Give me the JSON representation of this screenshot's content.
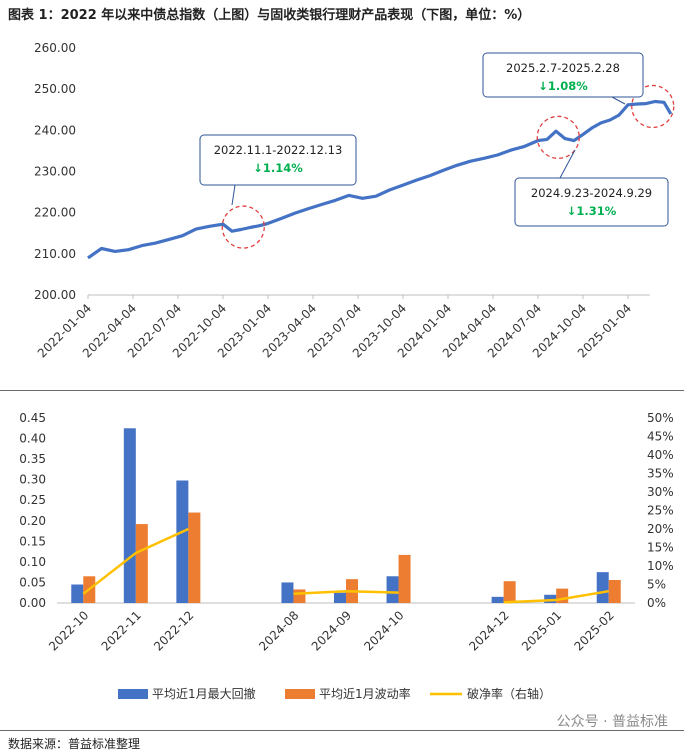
{
  "header": {
    "title": "图表 1：2022 年以来中债总指数（上图）与固收类银行理财产品表现（下图，单位：%）"
  },
  "footer": {
    "source": "数据来源：普益标准整理",
    "watermark": "公众号 · 普益标准"
  },
  "colors": {
    "line": "#4472c4",
    "bar1": "#4472c4",
    "bar2": "#ed7d31",
    "line2": "#ffc000",
    "down": "#00b050",
    "callout": "#2f5597",
    "circle": "#e04040"
  },
  "chart_data": [
    {
      "type": "line",
      "title": "中债总指数",
      "ylim": [
        200,
        260
      ],
      "yticks": [
        "200.00",
        "210.00",
        "220.00",
        "230.00",
        "240.00",
        "250.00",
        "260.00"
      ],
      "xticks": [
        "2022-01-04",
        "2022-04-04",
        "2022-07-04",
        "2022-10-04",
        "2023-01-04",
        "2023-04-04",
        "2023-07-04",
        "2023-10-04",
        "2024-01-04",
        "2024-04-04",
        "2024-07-04",
        "2024-10-04",
        "2025-01-04"
      ],
      "series": [
        {
          "name": "中债总指数",
          "x": [
            0,
            0.3,
            0.6,
            0.9,
            1.2,
            1.5,
            1.8,
            2.1,
            2.4,
            2.7,
            3.0,
            3.2,
            3.4,
            3.6,
            3.8,
            4.0,
            4.3,
            4.6,
            4.9,
            5.2,
            5.5,
            5.8,
            6.1,
            6.4,
            6.7,
            7.0,
            7.3,
            7.6,
            7.9,
            8.2,
            8.5,
            8.8,
            9.1,
            9.4,
            9.7,
            10.0,
            10.2,
            10.4,
            10.6,
            10.8,
            11.0,
            11.2,
            11.4,
            11.6,
            11.8,
            12.0,
            12.2,
            12.4,
            12.6,
            12.8,
            12.95
          ],
          "values": [
            209.0,
            211.3,
            210.6,
            211.0,
            212.0,
            212.6,
            213.5,
            214.4,
            216.0,
            216.7,
            217.2,
            215.5,
            215.9,
            216.4,
            216.8,
            217.4,
            218.6,
            219.9,
            221.0,
            222.0,
            223.0,
            224.2,
            223.5,
            224.0,
            225.5,
            226.7,
            227.9,
            229.0,
            230.3,
            231.5,
            232.5,
            233.2,
            234.0,
            235.2,
            236.1,
            237.5,
            237.8,
            239.8,
            238.0,
            237.5,
            239.0,
            240.6,
            241.8,
            242.5,
            243.7,
            246.2,
            246.4,
            246.5,
            247.0,
            246.8,
            244.0
          ]
        }
      ],
      "annotations": [
        {
          "period": "2022.11.1-2022.12.13",
          "change": "↓1.14%"
        },
        {
          "period": "2024.9.23-2024.9.29",
          "change": "↓1.31%"
        },
        {
          "period": "2025.2.7-2025.2.28",
          "change": "↓1.08%"
        }
      ]
    },
    {
      "type": "bar",
      "categories": [
        "2022-10",
        "2022-11",
        "2022-12",
        "",
        "2024-08",
        "2024-09",
        "2024-10",
        "",
        "2024-12",
        "2025-01",
        "2025-02"
      ],
      "ylim_left": [
        0,
        0.45
      ],
      "ylim_right": [
        0,
        50
      ],
      "yticks_left": [
        "0.00",
        "0.05",
        "0.10",
        "0.15",
        "0.20",
        "0.25",
        "0.30",
        "0.35",
        "0.40",
        "0.45"
      ],
      "yticks_right": [
        "0%",
        "5%",
        "10%",
        "15%",
        "20%",
        "25%",
        "30%",
        "35%",
        "40%",
        "45%",
        "50%"
      ],
      "series": [
        {
          "name": "平均近1月最大回撤",
          "axis": "left",
          "values": [
            0.045,
            0.425,
            0.298,
            null,
            0.05,
            0.025,
            0.065,
            null,
            0.015,
            0.02,
            0.075
          ]
        },
        {
          "name": "平均近1月波动率",
          "axis": "left",
          "values": [
            0.065,
            0.192,
            0.22,
            null,
            0.033,
            0.058,
            0.117,
            null,
            0.053,
            0.035,
            0.056
          ]
        },
        {
          "name": "破净率（右轴）",
          "axis": "right",
          "type": "line",
          "values": [
            2.5,
            13.5,
            20.0,
            null,
            2.5,
            3.2,
            2.8,
            null,
            0.2,
            0.8,
            3.2
          ]
        }
      ]
    }
  ]
}
